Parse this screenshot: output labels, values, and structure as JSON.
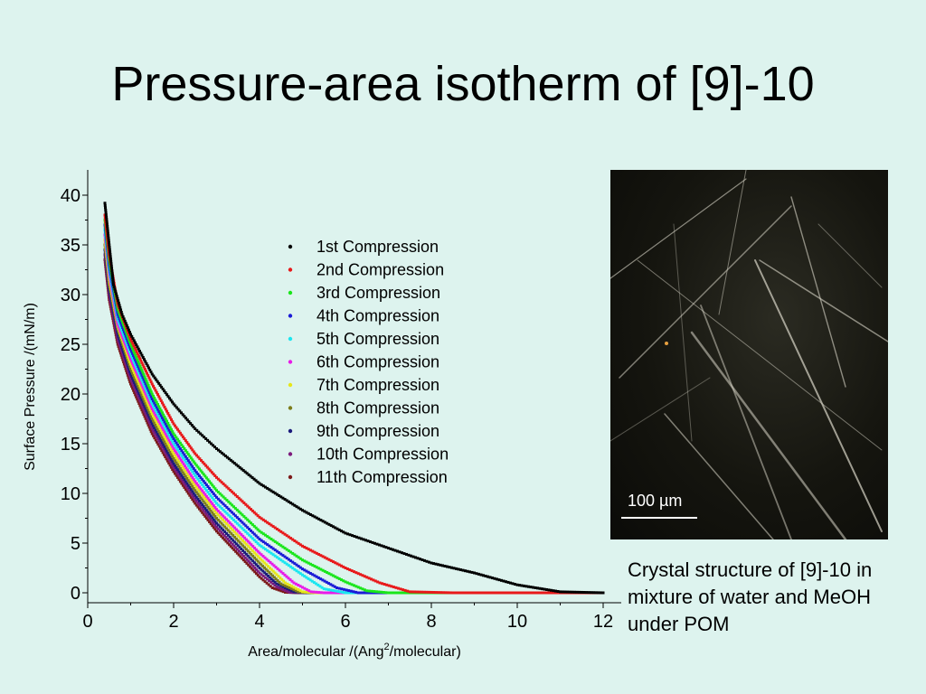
{
  "slide": {
    "title": "Pressure-area isotherm of [9]-10"
  },
  "photo": {
    "scale_label": "100 µm",
    "caption": "Crystal structure of [9]-10 in mixture of water and MeOH under POM"
  },
  "chart_data": {
    "type": "scatter",
    "xlabel": "Area/molecular /(Ang²/molecular)",
    "xlabel_base": "Area/molecular /(Ang",
    "xlabel_sup": "2",
    "xlabel_tail": "/molecular)",
    "ylabel": "Surface Pressure /(mN/m)",
    "xlim": [
      0,
      12.3
    ],
    "ylim": [
      -1,
      42
    ],
    "xticks": [
      0,
      2,
      4,
      6,
      8,
      10,
      12
    ],
    "yticks": [
      0,
      5,
      10,
      15,
      20,
      25,
      30,
      35,
      40
    ],
    "legend_position": "upper-center",
    "grid": false,
    "series": [
      {
        "name": "1st Compression",
        "color": "#000000",
        "marker": "square",
        "points": [
          [
            0.4,
            39.2
          ],
          [
            0.5,
            35
          ],
          [
            0.6,
            31
          ],
          [
            0.8,
            28
          ],
          [
            1,
            26
          ],
          [
            1.5,
            22
          ],
          [
            2,
            19
          ],
          [
            2.5,
            16.5
          ],
          [
            3,
            14.5
          ],
          [
            4,
            11
          ],
          [
            5,
            8.3
          ],
          [
            6,
            6
          ],
          [
            7,
            4.5
          ],
          [
            8,
            3
          ],
          [
            9,
            2
          ],
          [
            10,
            0.8
          ],
          [
            11,
            0.1
          ],
          [
            12,
            0
          ]
        ]
      },
      {
        "name": "2nd Compression",
        "color": "#e8191a",
        "marker": "circle",
        "points": [
          [
            0.4,
            38
          ],
          [
            0.5,
            34
          ],
          [
            0.7,
            29
          ],
          [
            1,
            25.5
          ],
          [
            1.5,
            21
          ],
          [
            2,
            17
          ],
          [
            2.5,
            14
          ],
          [
            3,
            11.6
          ],
          [
            4,
            7.6
          ],
          [
            5,
            4.7
          ],
          [
            6,
            2.5
          ],
          [
            6.8,
            1
          ],
          [
            7.5,
            0.1
          ],
          [
            8.5,
            0
          ],
          [
            12,
            0
          ]
        ]
      },
      {
        "name": "3rd Compression",
        "color": "#19e61a",
        "marker": "triangle-up",
        "points": [
          [
            0.4,
            37.5
          ],
          [
            0.5,
            33.5
          ],
          [
            0.7,
            28.5
          ],
          [
            1,
            25
          ],
          [
            1.5,
            20
          ],
          [
            2,
            16
          ],
          [
            2.5,
            13
          ],
          [
            3,
            10.3
          ],
          [
            4,
            6.2
          ],
          [
            5,
            3.3
          ],
          [
            6,
            1.1
          ],
          [
            6.5,
            0.2
          ],
          [
            7,
            0
          ],
          [
            12,
            0
          ]
        ]
      },
      {
        "name": "4th Compression",
        "color": "#1a1ad6",
        "marker": "triangle-down",
        "points": [
          [
            0.4,
            37
          ],
          [
            0.5,
            33
          ],
          [
            0.7,
            28
          ],
          [
            1,
            24.5
          ],
          [
            1.5,
            19.5
          ],
          [
            2,
            15.5
          ],
          [
            2.5,
            12.3
          ],
          [
            3,
            9.6
          ],
          [
            4,
            5.4
          ],
          [
            5,
            2.4
          ],
          [
            5.8,
            0.5
          ],
          [
            6.3,
            0
          ],
          [
            12,
            0
          ]
        ]
      },
      {
        "name": "5th Compression",
        "color": "#1ae6f0",
        "marker": "diamond",
        "points": [
          [
            0.4,
            36.5
          ],
          [
            0.5,
            32.5
          ],
          [
            0.7,
            27.5
          ],
          [
            1,
            24
          ],
          [
            1.5,
            19
          ],
          [
            2,
            15
          ],
          [
            2.5,
            11.8
          ],
          [
            3,
            9
          ],
          [
            4,
            4.8
          ],
          [
            5,
            1.8
          ],
          [
            5.5,
            0.4
          ],
          [
            6,
            0
          ],
          [
            12,
            0
          ]
        ]
      },
      {
        "name": "6th Compression",
        "color": "#e81ae8",
        "marker": "triangle-left",
        "points": [
          [
            0.4,
            36
          ],
          [
            0.5,
            32
          ],
          [
            0.7,
            27
          ],
          [
            1,
            23.5
          ],
          [
            1.5,
            18.5
          ],
          [
            2,
            14.5
          ],
          [
            2.5,
            11.2
          ],
          [
            3,
            8.4
          ],
          [
            4,
            4
          ],
          [
            4.8,
            1
          ],
          [
            5.2,
            0.1
          ],
          [
            5.5,
            0
          ],
          [
            12,
            0
          ]
        ]
      },
      {
        "name": "7th Compression",
        "color": "#e6e619",
        "marker": "triangle-right",
        "points": [
          [
            0.4,
            35.5
          ],
          [
            0.5,
            31.5
          ],
          [
            0.7,
            26.8
          ],
          [
            1,
            23
          ],
          [
            1.5,
            18
          ],
          [
            2,
            14
          ],
          [
            2.5,
            10.8
          ],
          [
            3,
            8
          ],
          [
            4,
            3.5
          ],
          [
            4.6,
            1
          ],
          [
            5,
            0.1
          ],
          [
            5.3,
            0
          ],
          [
            12,
            0
          ]
        ]
      },
      {
        "name": "8th Compression",
        "color": "#7c7c1a",
        "marker": "hexagon",
        "points": [
          [
            0.4,
            35
          ],
          [
            0.5,
            31
          ],
          [
            0.7,
            26.5
          ],
          [
            1,
            22.5
          ],
          [
            1.5,
            17.5
          ],
          [
            2,
            13.5
          ],
          [
            2.5,
            10.3
          ],
          [
            3,
            7.5
          ],
          [
            4,
            3
          ],
          [
            4.5,
            0.9
          ],
          [
            4.9,
            0.1
          ],
          [
            5.2,
            0
          ],
          [
            12,
            0
          ]
        ]
      },
      {
        "name": "9th Compression",
        "color": "#1a1a7c",
        "marker": "star",
        "points": [
          [
            0.4,
            34.5
          ],
          [
            0.5,
            30.5
          ],
          [
            0.7,
            26
          ],
          [
            1,
            22
          ],
          [
            1.5,
            17
          ],
          [
            2,
            13
          ],
          [
            2.5,
            9.8
          ],
          [
            3,
            7
          ],
          [
            4,
            2.5
          ],
          [
            4.4,
            0.9
          ],
          [
            4.8,
            0.1
          ],
          [
            5.1,
            0
          ],
          [
            12,
            0
          ]
        ]
      },
      {
        "name": "10th Compression",
        "color": "#7c1a7c",
        "marker": "pentagon",
        "points": [
          [
            0.4,
            34
          ],
          [
            0.5,
            30
          ],
          [
            0.7,
            25.5
          ],
          [
            1,
            21.5
          ],
          [
            1.5,
            16.5
          ],
          [
            2,
            12.6
          ],
          [
            2.5,
            9.4
          ],
          [
            3,
            6.6
          ],
          [
            4,
            2
          ],
          [
            4.4,
            0.6
          ],
          [
            4.7,
            0.05
          ],
          [
            5,
            0
          ],
          [
            12,
            0
          ]
        ]
      },
      {
        "name": "11th Compression",
        "color": "#7c1a1a",
        "marker": "circle-open",
        "points": [
          [
            0.4,
            33.5
          ],
          [
            0.5,
            29.5
          ],
          [
            0.7,
            25
          ],
          [
            1,
            21
          ],
          [
            1.5,
            16
          ],
          [
            2,
            12.2
          ],
          [
            2.5,
            9
          ],
          [
            3,
            6.2
          ],
          [
            4,
            1.6
          ],
          [
            4.3,
            0.5
          ],
          [
            4.6,
            0.05
          ],
          [
            4.9,
            0
          ],
          [
            12,
            0
          ]
        ]
      }
    ]
  }
}
